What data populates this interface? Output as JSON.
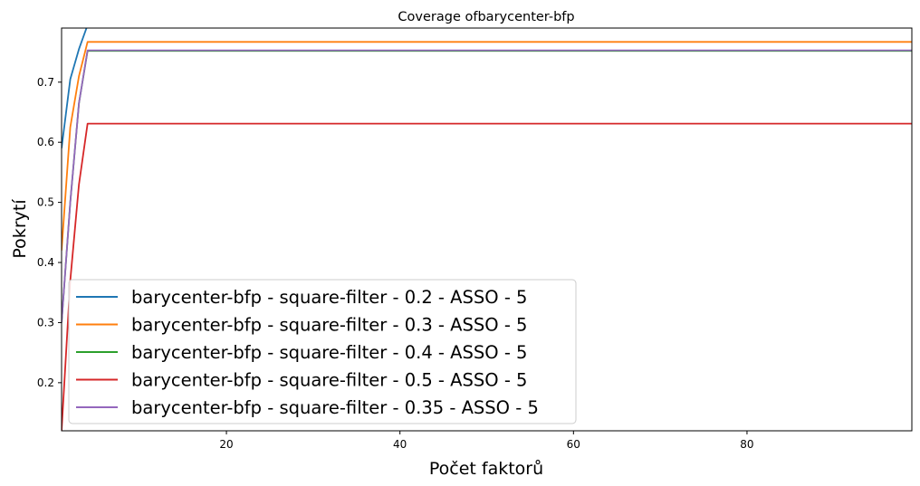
{
  "chart_data": {
    "type": "line",
    "title": "Coverage ofbarycenter-bfp",
    "xlabel": "Počet faktorů",
    "ylabel": "Pokrytí",
    "xlim": [
      1,
      99
    ],
    "ylim": [
      0.12,
      0.79
    ],
    "xticks": [
      20,
      40,
      60,
      80
    ],
    "yticks": [
      0.2,
      0.3,
      0.4,
      0.5,
      0.6,
      0.7
    ],
    "grid": false,
    "legend_position": "lower-left",
    "series": [
      {
        "name": "barycenter-bfp - square-filter - 0.2 - ASSO - 5",
        "color": "#1f77b4",
        "x": [
          1,
          2,
          3,
          4,
          5,
          99
        ],
        "y": [
          0.59,
          0.705,
          0.755,
          0.795,
          0.81,
          0.81
        ]
      },
      {
        "name": "barycenter-bfp - square-filter - 0.3 - ASSO - 5",
        "color": "#ff7f0e",
        "x": [
          1,
          2,
          3,
          4,
          99
        ],
        "y": [
          0.42,
          0.625,
          0.71,
          0.767,
          0.767
        ]
      },
      {
        "name": "barycenter-bfp - square-filter - 0.4 - ASSO - 5",
        "color": "#2ca02c",
        "x": [
          1,
          2,
          3,
          4,
          99
        ],
        "y": [
          0.3,
          0.5,
          0.665,
          0.752,
          0.752
        ]
      },
      {
        "name": "barycenter-bfp - square-filter - 0.5 - ASSO - 5",
        "color": "#d62728",
        "x": [
          1,
          2,
          3,
          4,
          99
        ],
        "y": [
          0.12,
          0.37,
          0.53,
          0.631,
          0.631
        ]
      },
      {
        "name": "barycenter-bfp - square-filter - 0.35 - ASSO - 5",
        "color": "#9467bd",
        "x": [
          1,
          2,
          3,
          4,
          99
        ],
        "y": [
          0.3,
          0.5,
          0.665,
          0.753,
          0.753
        ]
      }
    ]
  }
}
